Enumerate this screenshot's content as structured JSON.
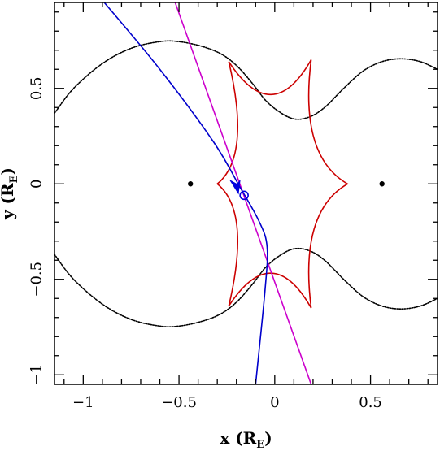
{
  "chart_data": {
    "type": "line",
    "xlabel": {
      "main": "x",
      "unit_open": " (R",
      "unit_sub": "E",
      "unit_close": ")"
    },
    "ylabel": {
      "main": "y",
      "unit_open": " (R",
      "unit_sub": "E",
      "unit_close": ")"
    },
    "xlim": [
      -1.15,
      0.85
    ],
    "ylim": [
      -1.05,
      0.95
    ],
    "x_ticks_major": [
      -1,
      -0.5,
      0,
      0.5
    ],
    "x_tick_labels": [
      "−1",
      "−0.5",
      "0",
      "0.5"
    ],
    "y_ticks_major": [
      -1,
      -0.5,
      0,
      0.5
    ],
    "y_tick_labels": [
      "−1",
      "−0.5",
      "0",
      "0.5"
    ],
    "minor_tick_step": 0.1,
    "grid": false,
    "lenses": [
      {
        "x": -0.44,
        "y": 0
      },
      {
        "x": 0.56,
        "y": 0
      }
    ],
    "caustic": {
      "color": "#cc0000",
      "cusps": [
        {
          "x": 0.38,
          "y": 0
        },
        {
          "x": 0.19,
          "y": 0.65
        },
        {
          "x": -0.24,
          "y": 0.64
        },
        {
          "x": -0.3,
          "y": 0
        },
        {
          "x": -0.24,
          "y": -0.64
        },
        {
          "x": 0.19,
          "y": -0.65
        }
      ]
    },
    "critical_curve": {
      "color": "#000000",
      "upper": [
        {
          "x": -1.15,
          "y": 0.37
        },
        {
          "x": -1.05,
          "y": 0.5
        },
        {
          "x": -0.9,
          "y": 0.63
        },
        {
          "x": -0.75,
          "y": 0.71
        },
        {
          "x": -0.6,
          "y": 0.745
        },
        {
          "x": -0.5,
          "y": 0.745
        },
        {
          "x": -0.38,
          "y": 0.72
        },
        {
          "x": -0.28,
          "y": 0.68
        },
        {
          "x": -0.2,
          "y": 0.62
        },
        {
          "x": -0.12,
          "y": 0.53
        },
        {
          "x": -0.05,
          "y": 0.44
        },
        {
          "x": 0.02,
          "y": 0.38
        },
        {
          "x": 0.1,
          "y": 0.34
        },
        {
          "x": 0.18,
          "y": 0.35
        },
        {
          "x": 0.26,
          "y": 0.4
        },
        {
          "x": 0.36,
          "y": 0.5
        },
        {
          "x": 0.46,
          "y": 0.59
        },
        {
          "x": 0.56,
          "y": 0.64
        },
        {
          "x": 0.66,
          "y": 0.655
        },
        {
          "x": 0.76,
          "y": 0.64
        },
        {
          "x": 0.85,
          "y": 0.6
        }
      ],
      "lower": [
        {
          "x": -1.15,
          "y": -0.37
        },
        {
          "x": -1.05,
          "y": -0.5
        },
        {
          "x": -0.9,
          "y": -0.63
        },
        {
          "x": -0.75,
          "y": -0.71
        },
        {
          "x": -0.6,
          "y": -0.745
        },
        {
          "x": -0.5,
          "y": -0.745
        },
        {
          "x": -0.38,
          "y": -0.72
        },
        {
          "x": -0.28,
          "y": -0.68
        },
        {
          "x": -0.2,
          "y": -0.62
        },
        {
          "x": -0.12,
          "y": -0.53
        },
        {
          "x": -0.05,
          "y": -0.44
        },
        {
          "x": 0.02,
          "y": -0.38
        },
        {
          "x": 0.1,
          "y": -0.34
        },
        {
          "x": 0.18,
          "y": -0.35
        },
        {
          "x": 0.26,
          "y": -0.4
        },
        {
          "x": 0.36,
          "y": -0.5
        },
        {
          "x": 0.46,
          "y": -0.59
        },
        {
          "x": 0.56,
          "y": -0.64
        },
        {
          "x": 0.66,
          "y": -0.655
        },
        {
          "x": 0.76,
          "y": -0.64
        },
        {
          "x": 0.85,
          "y": -0.6
        }
      ]
    },
    "source_trajectory": {
      "color": "#0000cc",
      "points": [
        {
          "x": -0.89,
          "y": 0.95
        },
        {
          "x": -0.6,
          "y": 0.6
        },
        {
          "x": -0.32,
          "y": 0.22
        },
        {
          "x": -0.18,
          "y": -0.02
        },
        {
          "x": -0.08,
          "y": -0.2
        },
        {
          "x": -0.04,
          "y": -0.33
        },
        {
          "x": -0.05,
          "y": -0.55
        },
        {
          "x": -0.1,
          "y": -1.05
        }
      ]
    },
    "lens_axis_line": {
      "color": "#cc00cc",
      "points": [
        {
          "x": -0.52,
          "y": 0.95
        },
        {
          "x": 0.19,
          "y": -1.05
        }
      ]
    },
    "source_marker": {
      "color": "#0000dd",
      "circle": {
        "x": -0.16,
        "y": -0.06
      },
      "arrow_tip": {
        "x": -0.19,
        "y": -0.05
      }
    }
  }
}
